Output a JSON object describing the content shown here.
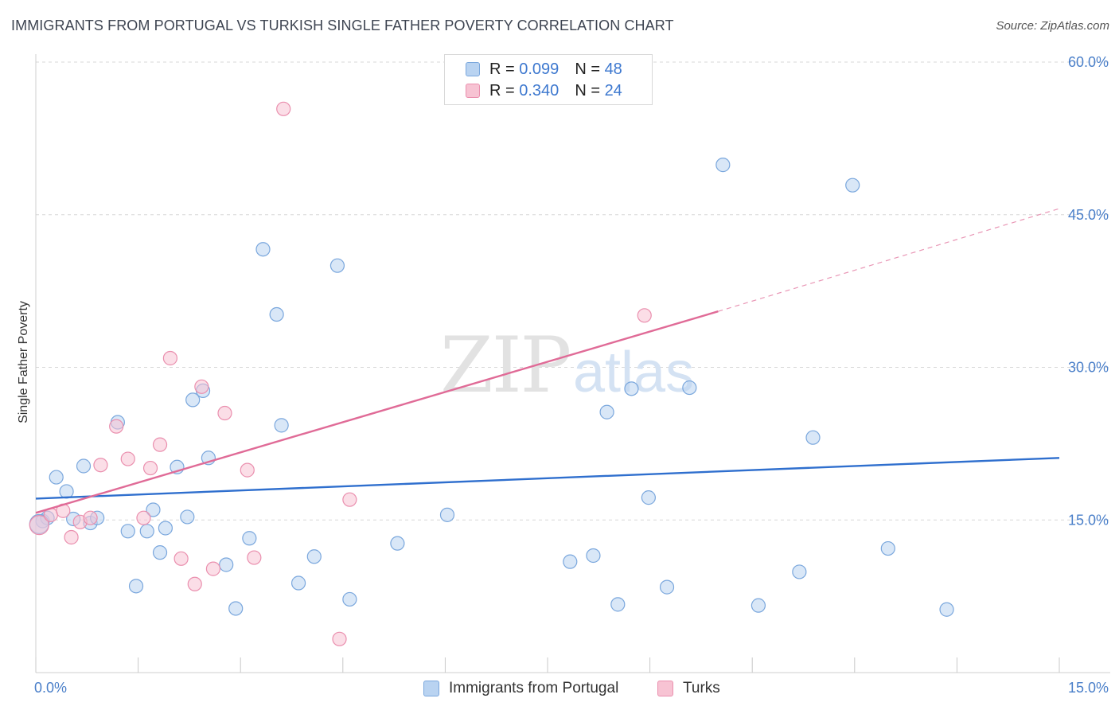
{
  "title": "IMMIGRANTS FROM PORTUGAL VS TURKISH SINGLE FATHER POVERTY CORRELATION CHART",
  "source": "Source: ZipAtlas.com",
  "watermark": {
    "zip": "ZIP",
    "atlas": "atlas"
  },
  "colors": {
    "blue_fill": "#b9d3f1",
    "blue_stroke": "#7aa7dd",
    "blue_line": "#2f6fce",
    "pink_fill": "#f7c3d3",
    "pink_stroke": "#ea8fae",
    "pink_line": "#e06b97",
    "grid": "#d8d8d8",
    "tick_text": "#4a7fc9"
  },
  "legend": {
    "rows": [
      {
        "r_label": "R = ",
        "r_value": "0.099",
        "n_label": "N = ",
        "n_value": "48",
        "series": "blue"
      },
      {
        "r_label": "R = ",
        "r_value": "0.340",
        "n_label": "N = ",
        "n_value": "24",
        "series": "pink"
      }
    ]
  },
  "bottom_legend": {
    "blue_label": "Immigrants from Portugal",
    "pink_label": "Turks"
  },
  "chart_data": {
    "type": "scatter",
    "title": "IMMIGRANTS FROM PORTUGAL VS TURKISH SINGLE FATHER POVERTY CORRELATION CHART",
    "xlabel": "",
    "ylabel": "Single Father Poverty",
    "xlim": [
      0,
      15
    ],
    "ylim": [
      0,
      60
    ],
    "x_tick_labels": [
      {
        "value": 0,
        "label": "0.0%"
      },
      {
        "value": 15,
        "label": "15.0%"
      }
    ],
    "y_tick_labels": [
      {
        "value": 15,
        "label": "15.0%"
      },
      {
        "value": 30,
        "label": "30.0%"
      },
      {
        "value": 45,
        "label": "45.0%"
      },
      {
        "value": 60,
        "label": "60.0%"
      }
    ],
    "series": [
      {
        "name": "Immigrants from Portugal",
        "color": "blue",
        "R": 0.099,
        "N": 48,
        "trend": {
          "x0": 0,
          "y0": 17.1,
          "x1": 15,
          "y1": 21.1
        },
        "points": [
          [
            0.1,
            14.9
          ],
          [
            0.17,
            15.2
          ],
          [
            0.3,
            19.2
          ],
          [
            0.45,
            17.8
          ],
          [
            0.55,
            15.1
          ],
          [
            0.7,
            20.3
          ],
          [
            0.8,
            14.7
          ],
          [
            0.9,
            15.2
          ],
          [
            1.2,
            24.6
          ],
          [
            1.35,
            13.9
          ],
          [
            1.47,
            8.5
          ],
          [
            1.63,
            13.9
          ],
          [
            1.72,
            16.0
          ],
          [
            1.82,
            11.8
          ],
          [
            1.9,
            14.2
          ],
          [
            2.07,
            20.2
          ],
          [
            2.22,
            15.3
          ],
          [
            2.3,
            26.8
          ],
          [
            2.45,
            27.7
          ],
          [
            2.53,
            21.1
          ],
          [
            2.79,
            10.6
          ],
          [
            2.93,
            6.3
          ],
          [
            3.13,
            13.2
          ],
          [
            3.33,
            41.6
          ],
          [
            3.53,
            35.2
          ],
          [
            3.6,
            24.3
          ],
          [
            3.85,
            8.8
          ],
          [
            4.08,
            11.4
          ],
          [
            4.42,
            40.0
          ],
          [
            4.6,
            7.2
          ],
          [
            5.3,
            12.7
          ],
          [
            6.03,
            15.5
          ],
          [
            7.83,
            10.9
          ],
          [
            8.17,
            11.5
          ],
          [
            8.37,
            25.6
          ],
          [
            8.53,
            6.7
          ],
          [
            8.73,
            27.9
          ],
          [
            8.98,
            17.2
          ],
          [
            9.25,
            8.4
          ],
          [
            9.58,
            28.0
          ],
          [
            10.07,
            49.9
          ],
          [
            10.59,
            6.6
          ],
          [
            11.19,
            9.9
          ],
          [
            11.39,
            23.1
          ],
          [
            11.97,
            47.9
          ],
          [
            12.49,
            12.2
          ],
          [
            13.35,
            6.2
          ],
          [
            0.05,
            14.6
          ]
        ]
      },
      {
        "name": "Turks",
        "color": "pink",
        "R": 0.34,
        "N": 24,
        "trend": {
          "x0": 0,
          "y0": 15.7,
          "x1": 10.0,
          "y1": 35.5,
          "dashed_to_x": 15,
          "dashed_to_y": 45.6
        },
        "points": [
          [
            0.05,
            14.5
          ],
          [
            0.22,
            15.5
          ],
          [
            0.4,
            15.9
          ],
          [
            0.52,
            13.3
          ],
          [
            0.65,
            14.8
          ],
          [
            0.8,
            15.2
          ],
          [
            0.95,
            20.4
          ],
          [
            1.18,
            24.2
          ],
          [
            1.35,
            21.0
          ],
          [
            1.58,
            15.2
          ],
          [
            1.68,
            20.1
          ],
          [
            1.82,
            22.4
          ],
          [
            1.97,
            30.9
          ],
          [
            2.13,
            11.2
          ],
          [
            2.33,
            8.7
          ],
          [
            2.43,
            28.1
          ],
          [
            2.6,
            10.2
          ],
          [
            2.77,
            25.5
          ],
          [
            3.1,
            19.9
          ],
          [
            3.2,
            11.3
          ],
          [
            3.63,
            55.4
          ],
          [
            4.45,
            3.3
          ],
          [
            4.6,
            17.0
          ],
          [
            8.92,
            35.1
          ]
        ]
      }
    ]
  }
}
